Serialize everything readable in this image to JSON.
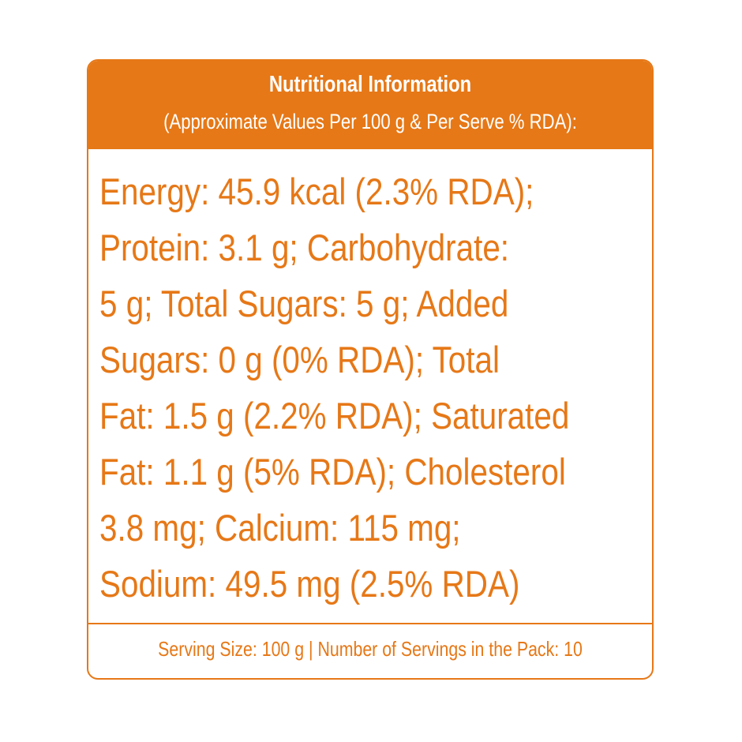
{
  "label": {
    "title": "Nutritional Information",
    "subtitle": "(Approximate Values Per 100 g & Per Serve % RDA):",
    "lines": [
      "Energy: 45.9 kcal (2.3% RDA);",
      "Protein: 3.1 g; Carbohydrate:",
      "5 g; Total Sugars: 5 g; Added",
      "Sugars: 0 g (0% RDA); Total",
      "Fat: 1.5 g (2.2% RDA); Saturated",
      "Fat: 1.1 g (5% RDA); Cholesterol",
      "3.8 mg; Calcium: 115 mg;",
      "Sodium: 49.5 mg (2.5% RDA)"
    ],
    "footer": "Serving Size: 100 g | Number of Servings in the Pack: 10"
  },
  "colors": {
    "accent": "#e67817",
    "background": "#ffffff"
  }
}
